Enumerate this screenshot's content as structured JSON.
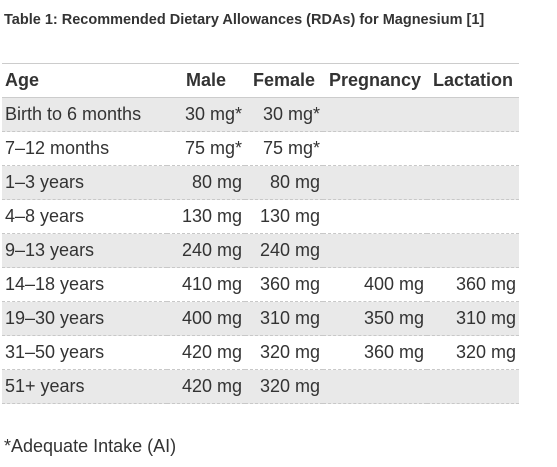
{
  "caption": "Table 1: Recommended Dietary Allowances (RDAs) for Magnesium [1]",
  "table": {
    "headers": [
      "Age",
      "Male",
      "Female",
      "Pregnancy",
      "Lactation"
    ],
    "rows": [
      {
        "age": "Birth to 6 months",
        "male": "30 mg*",
        "female": "30 mg*",
        "pregnancy": "",
        "lactation": ""
      },
      {
        "age": "7–12 months",
        "male": "75 mg*",
        "female": "75 mg*",
        "pregnancy": "",
        "lactation": ""
      },
      {
        "age": "1–3 years",
        "male": "80 mg",
        "female": "80 mg",
        "pregnancy": "",
        "lactation": ""
      },
      {
        "age": "4–8 years",
        "male": "130 mg",
        "female": "130 mg",
        "pregnancy": "",
        "lactation": ""
      },
      {
        "age": "9–13 years",
        "male": "240 mg",
        "female": "240 mg",
        "pregnancy": "",
        "lactation": ""
      },
      {
        "age": "14–18 years",
        "male": "410 mg",
        "female": "360 mg",
        "pregnancy": "400 mg",
        "lactation": "360 mg"
      },
      {
        "age": "19–30 years",
        "male": "400 mg",
        "female": "310 mg",
        "pregnancy": "350 mg",
        "lactation": "310 mg"
      },
      {
        "age": "31–50 years",
        "male": "420 mg",
        "female": "320 mg",
        "pregnancy": "360 mg",
        "lactation": "320 mg"
      },
      {
        "age": "51+ years",
        "male": "420 mg",
        "female": "320 mg",
        "pregnancy": "",
        "lactation": ""
      }
    ]
  },
  "footnote": "*Adequate Intake (AI)"
}
